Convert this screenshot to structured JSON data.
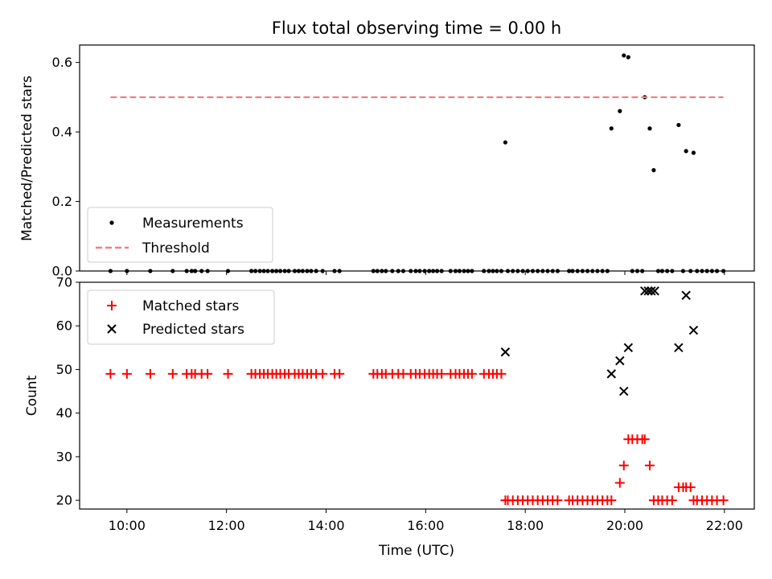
{
  "chart_data": [
    {
      "type": "scatter",
      "title": "Flux total observing time = 0.00 h",
      "xlabel": "",
      "ylabel": "Matched/Predicted stars",
      "xlim": [
        9.05,
        22.6
      ],
      "ylim": [
        0,
        0.65
      ],
      "yticks": [
        0.0,
        0.2,
        0.4,
        0.6
      ],
      "ytick_labels": [
        "0.0",
        "0.2",
        "0.4",
        "0.6"
      ],
      "legend_position": "lower-left",
      "series": [
        {
          "name": "Measurements",
          "marker": "dot",
          "color": "#000000",
          "points": [
            [
              9.67,
              0
            ],
            [
              10.0,
              0
            ],
            [
              10.47,
              0
            ],
            [
              10.92,
              0
            ],
            [
              11.2,
              0
            ],
            [
              11.3,
              0
            ],
            [
              11.37,
              0
            ],
            [
              11.5,
              0
            ],
            [
              11.62,
              0
            ],
            [
              12.03,
              0
            ],
            [
              12.5,
              0
            ],
            [
              12.58,
              0
            ],
            [
              12.67,
              0
            ],
            [
              12.75,
              0
            ],
            [
              12.83,
              0
            ],
            [
              12.92,
              0
            ],
            [
              13.0,
              0
            ],
            [
              13.08,
              0
            ],
            [
              13.17,
              0
            ],
            [
              13.25,
              0
            ],
            [
              13.37,
              0
            ],
            [
              13.45,
              0
            ],
            [
              13.53,
              0
            ],
            [
              13.62,
              0
            ],
            [
              13.7,
              0
            ],
            [
              13.8,
              0
            ],
            [
              13.93,
              0
            ],
            [
              14.17,
              0
            ],
            [
              14.27,
              0
            ],
            [
              14.95,
              0
            ],
            [
              15.03,
              0
            ],
            [
              15.12,
              0
            ],
            [
              15.2,
              0
            ],
            [
              15.33,
              0
            ],
            [
              15.45,
              0
            ],
            [
              15.55,
              0
            ],
            [
              15.7,
              0
            ],
            [
              15.8,
              0
            ],
            [
              15.88,
              0
            ],
            [
              15.98,
              0
            ],
            [
              16.07,
              0
            ],
            [
              16.15,
              0
            ],
            [
              16.23,
              0
            ],
            [
              16.32,
              0
            ],
            [
              16.5,
              0
            ],
            [
              16.6,
              0
            ],
            [
              16.68,
              0
            ],
            [
              16.77,
              0
            ],
            [
              16.85,
              0
            ],
            [
              16.93,
              0
            ],
            [
              17.17,
              0
            ],
            [
              17.27,
              0
            ],
            [
              17.35,
              0
            ],
            [
              17.43,
              0
            ],
            [
              17.52,
              0
            ],
            [
              17.6,
              0.37
            ],
            [
              17.65,
              0
            ],
            [
              17.75,
              0
            ],
            [
              17.85,
              0
            ],
            [
              17.95,
              0
            ],
            [
              18.05,
              0
            ],
            [
              18.15,
              0
            ],
            [
              18.25,
              0
            ],
            [
              18.35,
              0
            ],
            [
              18.45,
              0
            ],
            [
              18.55,
              0
            ],
            [
              18.65,
              0
            ],
            [
              18.88,
              0
            ],
            [
              18.95,
              0
            ],
            [
              19.05,
              0
            ],
            [
              19.15,
              0
            ],
            [
              19.25,
              0
            ],
            [
              19.35,
              0
            ],
            [
              19.45,
              0
            ],
            [
              19.55,
              0
            ],
            [
              19.65,
              0
            ],
            [
              19.73,
              0.41
            ],
            [
              19.9,
              0.46
            ],
            [
              19.98,
              0.62
            ],
            [
              20.07,
              0.615
            ],
            [
              20.15,
              0
            ],
            [
              20.25,
              0
            ],
            [
              20.35,
              0
            ],
            [
              20.4,
              0.5
            ],
            [
              20.5,
              0.41
            ],
            [
              20.58,
              0.29
            ],
            [
              20.67,
              0
            ],
            [
              20.75,
              0
            ],
            [
              20.85,
              0
            ],
            [
              20.95,
              0
            ],
            [
              21.08,
              0.42
            ],
            [
              21.17,
              0
            ],
            [
              21.23,
              0.345
            ],
            [
              21.32,
              0
            ],
            [
              21.38,
              0.34
            ],
            [
              21.45,
              0
            ],
            [
              21.55,
              0
            ],
            [
              21.65,
              0
            ],
            [
              21.75,
              0
            ],
            [
              21.85,
              0
            ],
            [
              21.98,
              0
            ]
          ]
        },
        {
          "name": "Threshold",
          "marker": "dashed-line",
          "color": "#f08080",
          "points": [
            [
              9.67,
              0.5
            ],
            [
              21.98,
              0.5
            ]
          ]
        }
      ]
    },
    {
      "type": "scatter",
      "title": "",
      "xlabel": "Time (UTC)",
      "ylabel": "Count",
      "xlim": [
        9.05,
        22.6
      ],
      "ylim": [
        18,
        70
      ],
      "xticks": [
        10,
        12,
        14,
        16,
        18,
        20,
        22
      ],
      "xtick_labels": [
        "10:00",
        "12:00",
        "14:00",
        "16:00",
        "18:00",
        "20:00",
        "22:00"
      ],
      "yticks": [
        20,
        30,
        40,
        50,
        60,
        70
      ],
      "ytick_labels": [
        "20",
        "30",
        "40",
        "50",
        "60",
        "70"
      ],
      "legend_position": "upper-left",
      "series": [
        {
          "name": "Matched stars",
          "marker": "plus",
          "color": "#ff0000",
          "points": [
            [
              9.67,
              49
            ],
            [
              10.0,
              49
            ],
            [
              10.47,
              49
            ],
            [
              10.92,
              49
            ],
            [
              11.2,
              49
            ],
            [
              11.3,
              49
            ],
            [
              11.37,
              49
            ],
            [
              11.5,
              49
            ],
            [
              11.62,
              49
            ],
            [
              12.03,
              49
            ],
            [
              12.5,
              49
            ],
            [
              12.58,
              49
            ],
            [
              12.67,
              49
            ],
            [
              12.75,
              49
            ],
            [
              12.83,
              49
            ],
            [
              12.92,
              49
            ],
            [
              13.0,
              49
            ],
            [
              13.08,
              49
            ],
            [
              13.17,
              49
            ],
            [
              13.25,
              49
            ],
            [
              13.37,
              49
            ],
            [
              13.45,
              49
            ],
            [
              13.53,
              49
            ],
            [
              13.62,
              49
            ],
            [
              13.7,
              49
            ],
            [
              13.8,
              49
            ],
            [
              13.93,
              49
            ],
            [
              14.17,
              49
            ],
            [
              14.27,
              49
            ],
            [
              14.95,
              49
            ],
            [
              15.03,
              49
            ],
            [
              15.12,
              49
            ],
            [
              15.2,
              49
            ],
            [
              15.33,
              49
            ],
            [
              15.45,
              49
            ],
            [
              15.55,
              49
            ],
            [
              15.7,
              49
            ],
            [
              15.8,
              49
            ],
            [
              15.88,
              49
            ],
            [
              15.98,
              49
            ],
            [
              16.07,
              49
            ],
            [
              16.15,
              49
            ],
            [
              16.23,
              49
            ],
            [
              16.32,
              49
            ],
            [
              16.5,
              49
            ],
            [
              16.6,
              49
            ],
            [
              16.68,
              49
            ],
            [
              16.77,
              49
            ],
            [
              16.85,
              49
            ],
            [
              16.93,
              49
            ],
            [
              17.17,
              49
            ],
            [
              17.27,
              49
            ],
            [
              17.35,
              49
            ],
            [
              17.43,
              49
            ],
            [
              17.52,
              49
            ],
            [
              17.6,
              20
            ],
            [
              17.65,
              20
            ],
            [
              17.75,
              20
            ],
            [
              17.85,
              20
            ],
            [
              17.95,
              20
            ],
            [
              18.05,
              20
            ],
            [
              18.15,
              20
            ],
            [
              18.25,
              20
            ],
            [
              18.35,
              20
            ],
            [
              18.45,
              20
            ],
            [
              18.55,
              20
            ],
            [
              18.65,
              20
            ],
            [
              18.88,
              20
            ],
            [
              18.95,
              20
            ],
            [
              19.05,
              20
            ],
            [
              19.15,
              20
            ],
            [
              19.25,
              20
            ],
            [
              19.35,
              20
            ],
            [
              19.45,
              20
            ],
            [
              19.55,
              20
            ],
            [
              19.65,
              20
            ],
            [
              19.73,
              20
            ],
            [
              19.9,
              24
            ],
            [
              19.98,
              28
            ],
            [
              20.07,
              34
            ],
            [
              20.15,
              34
            ],
            [
              20.25,
              34
            ],
            [
              20.35,
              34
            ],
            [
              20.4,
              34
            ],
            [
              20.5,
              28
            ],
            [
              20.58,
              20
            ],
            [
              20.67,
              20
            ],
            [
              20.75,
              20
            ],
            [
              20.85,
              20
            ],
            [
              20.95,
              20
            ],
            [
              21.08,
              23
            ],
            [
              21.17,
              23
            ],
            [
              21.23,
              23
            ],
            [
              21.32,
              23
            ],
            [
              21.38,
              20
            ],
            [
              21.45,
              20
            ],
            [
              21.55,
              20
            ],
            [
              21.65,
              20
            ],
            [
              21.75,
              20
            ],
            [
              21.85,
              20
            ],
            [
              21.98,
              20
            ]
          ]
        },
        {
          "name": "Predicted stars",
          "marker": "x",
          "color": "#000000",
          "points": [
            [
              17.6,
              54
            ],
            [
              19.73,
              49
            ],
            [
              19.9,
              52
            ],
            [
              19.98,
              45
            ],
            [
              20.07,
              55
            ],
            [
              20.4,
              68
            ],
            [
              20.47,
              68
            ],
            [
              20.53,
              68
            ],
            [
              20.6,
              68
            ],
            [
              21.08,
              55
            ],
            [
              21.23,
              67
            ],
            [
              21.38,
              59
            ]
          ]
        }
      ]
    }
  ]
}
